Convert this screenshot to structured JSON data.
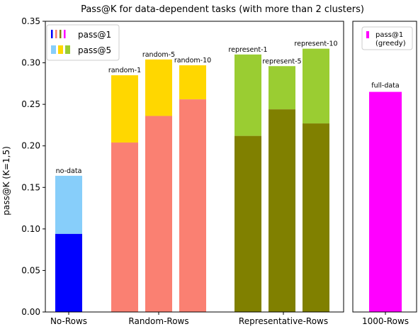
{
  "chart_data": {
    "type": "bar",
    "title": "Pass@K for data-dependent tasks (with more than 2 clusters)",
    "ylabel": "pass@K (K=1,5)",
    "ylim": [
      0,
      0.35
    ],
    "yticks": [
      "0.00",
      "0.05",
      "0.10",
      "0.15",
      "0.20",
      "0.25",
      "0.30",
      "0.35"
    ],
    "groups": [
      {
        "name": "No-Rows",
        "bars": [
          {
            "label": "no-data",
            "pass1": 0.094,
            "pass5": 0.164,
            "color1": "#0000ff",
            "color5": "#87cefa"
          }
        ]
      },
      {
        "name": "Random-Rows",
        "bars": [
          {
            "label": "random-1",
            "pass1": 0.204,
            "pass5": 0.285,
            "color1": "#fa8072",
            "color5": "#ffd700"
          },
          {
            "label": "random-5",
            "pass1": 0.236,
            "pass5": 0.304,
            "color1": "#fa8072",
            "color5": "#ffd700"
          },
          {
            "label": "random-10",
            "pass1": 0.256,
            "pass5": 0.297,
            "color1": "#fa8072",
            "color5": "#ffd700"
          }
        ]
      },
      {
        "name": "Representative-Rows",
        "bars": [
          {
            "label": "represent-1",
            "pass1": 0.212,
            "pass5": 0.31,
            "color1": "#808000",
            "color5": "#9acd32"
          },
          {
            "label": "represent-5",
            "pass1": 0.244,
            "pass5": 0.296,
            "color1": "#808000",
            "color5": "#9acd32"
          },
          {
            "label": "represent-10",
            "pass1": 0.227,
            "pass5": 0.317,
            "color1": "#808000",
            "color5": "#9acd32"
          }
        ]
      }
    ],
    "right_panel": {
      "category": "1000-Rows",
      "bar_label": "full-data",
      "value": 0.265,
      "color": "#ff00ff",
      "legend": "pass@1\n(greedy)"
    },
    "legend": {
      "placement": "top-left",
      "entries": [
        {
          "label": "pass@1",
          "colors": [
            "#0000ff",
            "#fa8072",
            "#808000",
            "#ff00ff"
          ]
        },
        {
          "label": "pass@5",
          "colors": [
            "#87cefa",
            "#ffd700",
            "#9acd32"
          ]
        }
      ]
    },
    "grid": false
  }
}
